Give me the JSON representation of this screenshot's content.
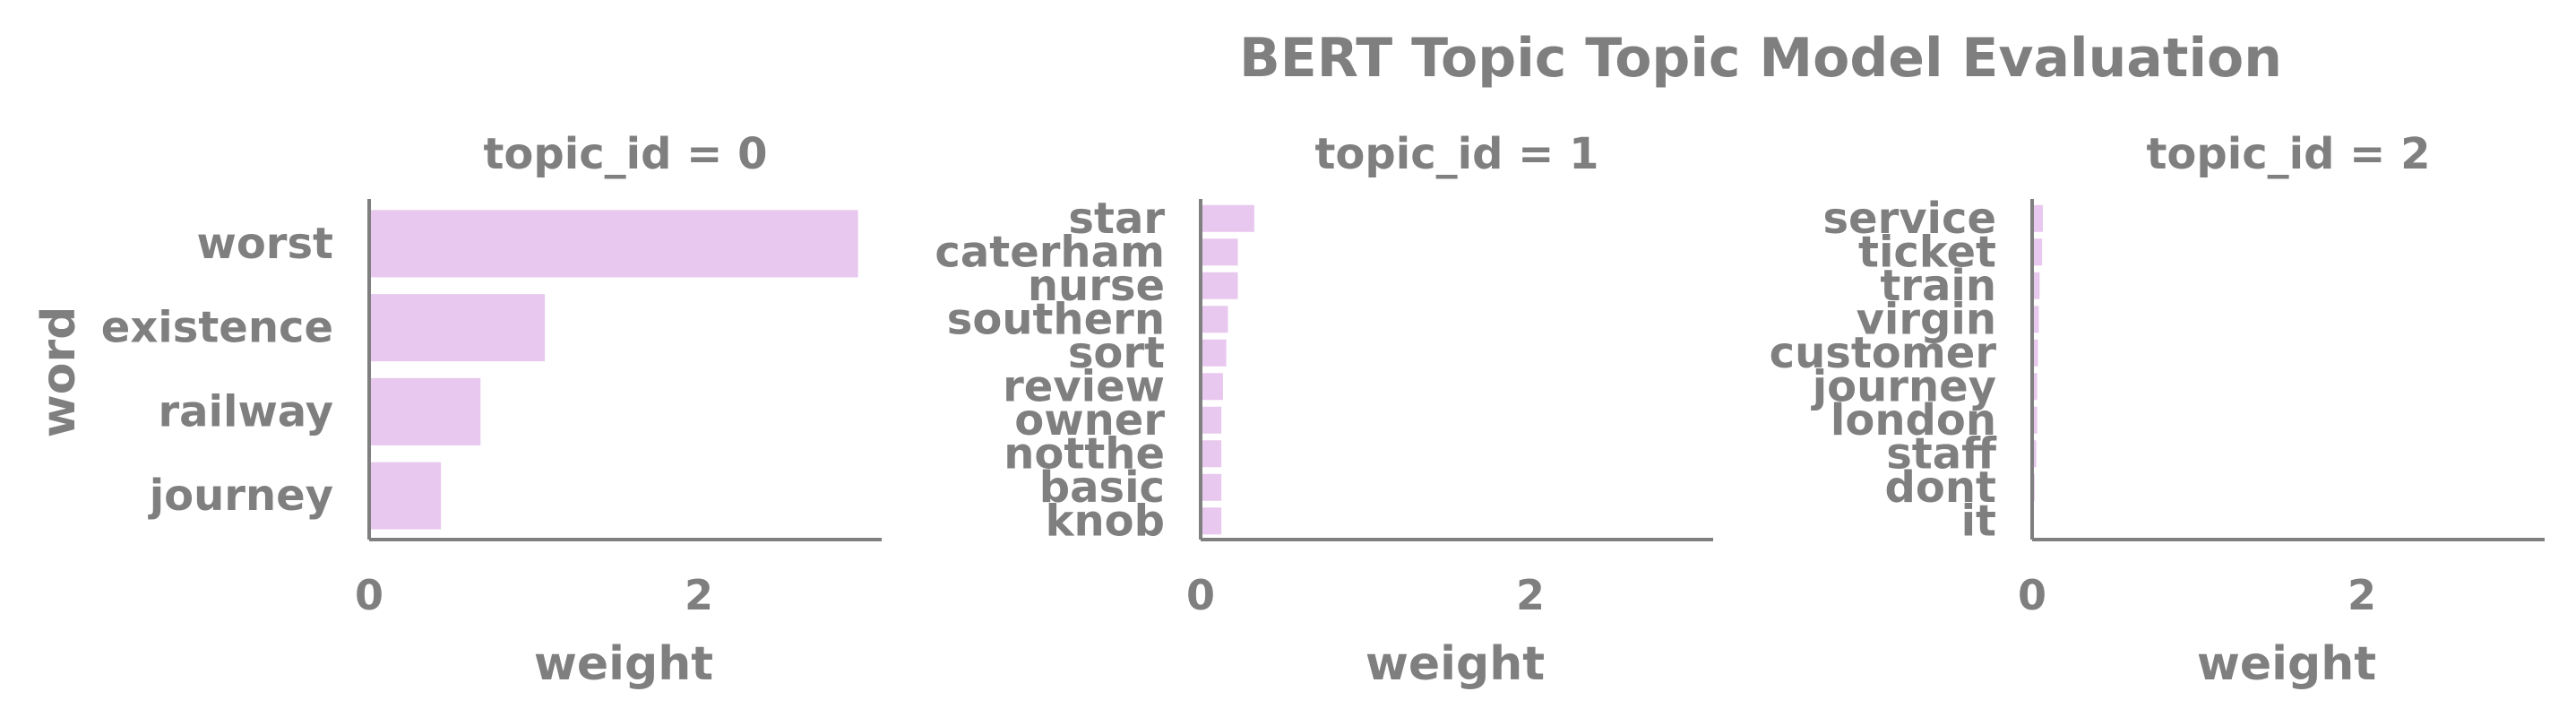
{
  "figure": {
    "title": "BERT Topic Topic Model Evaluation",
    "ylabel": "word",
    "bar_color": "#e8c8ee",
    "axis_color": "#7f7f7f",
    "text_color": "#7f7f7f"
  },
  "chart_data": [
    {
      "type": "bar",
      "orientation": "horizontal",
      "title": "topic_id = 0",
      "xlabel": "weight",
      "ylabel": "word",
      "xlim": [
        0,
        3.1
      ],
      "xticks": [
        0,
        2
      ],
      "categories": [
        "worst",
        "existence",
        "railway",
        "journey"
      ],
      "values": [
        2.96,
        1.06,
        0.67,
        0.43
      ]
    },
    {
      "type": "bar",
      "orientation": "horizontal",
      "title": "topic_id = 1",
      "xlabel": "weight",
      "xlim": [
        0,
        3.1
      ],
      "xticks": [
        0,
        2
      ],
      "categories": [
        "star",
        "caterham",
        "nurse",
        "southern",
        "sort",
        "review",
        "owner",
        "notthe",
        "basic",
        "knob"
      ],
      "values": [
        0.32,
        0.22,
        0.22,
        0.16,
        0.15,
        0.13,
        0.12,
        0.12,
        0.12,
        0.12
      ]
    },
    {
      "type": "bar",
      "orientation": "horizontal",
      "title": "topic_id = 2",
      "xlabel": "weight",
      "xlim": [
        0,
        3.1
      ],
      "xticks": [
        0,
        2
      ],
      "categories": [
        "service",
        "ticket",
        "train",
        "virgin",
        "customer",
        "journey",
        "london",
        "staff",
        "dont",
        "it"
      ],
      "values": [
        0.06,
        0.055,
        0.04,
        0.035,
        0.03,
        0.025,
        0.025,
        0.02,
        0.01,
        0.005
      ]
    }
  ]
}
